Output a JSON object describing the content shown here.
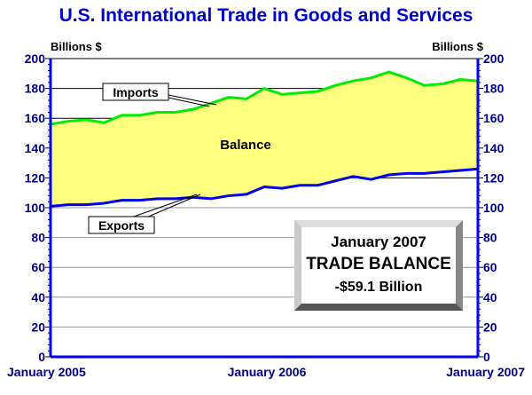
{
  "chart_data": {
    "type": "area",
    "title": "U.S. International Trade in Goods and Services",
    "ylabel_left": "Billions $",
    "ylabel_right": "Billions $",
    "ylim": [
      0,
      200
    ],
    "yticks": [
      0,
      20,
      40,
      60,
      80,
      100,
      120,
      140,
      160,
      180,
      200
    ],
    "grid": true,
    "xtick_labels": [
      "January 2005",
      "January 2006",
      "January 2007"
    ],
    "x": [
      "2005-01",
      "2005-02",
      "2005-03",
      "2005-04",
      "2005-05",
      "2005-06",
      "2005-07",
      "2005-08",
      "2005-09",
      "2005-10",
      "2005-11",
      "2005-12",
      "2006-01",
      "2006-02",
      "2006-03",
      "2006-04",
      "2006-05",
      "2006-06",
      "2006-07",
      "2006-08",
      "2006-09",
      "2006-10",
      "2006-11",
      "2006-12",
      "2007-01"
    ],
    "series": [
      {
        "name": "Imports",
        "color": "#00ee00",
        "values": [
          156,
          158,
          159,
          157,
          162,
          162,
          164,
          164,
          166,
          170,
          174,
          173,
          180,
          176,
          177,
          178,
          182,
          185,
          187,
          191,
          187,
          182,
          183,
          186,
          185
        ]
      },
      {
        "name": "Exports",
        "color": "#0000ee",
        "values": [
          101,
          102,
          102,
          103,
          105,
          105,
          106,
          106,
          107,
          106,
          108,
          109,
          114,
          113,
          115,
          115,
          118,
          121,
          119,
          122,
          123,
          123,
          124,
          125,
          126
        ]
      }
    ],
    "fill_label": "Balance",
    "fill_color": "#ffff80",
    "annotation": {
      "line1": "January 2007",
      "line2": "TRADE BALANCE",
      "line3": "-$59.1 Billion"
    }
  }
}
